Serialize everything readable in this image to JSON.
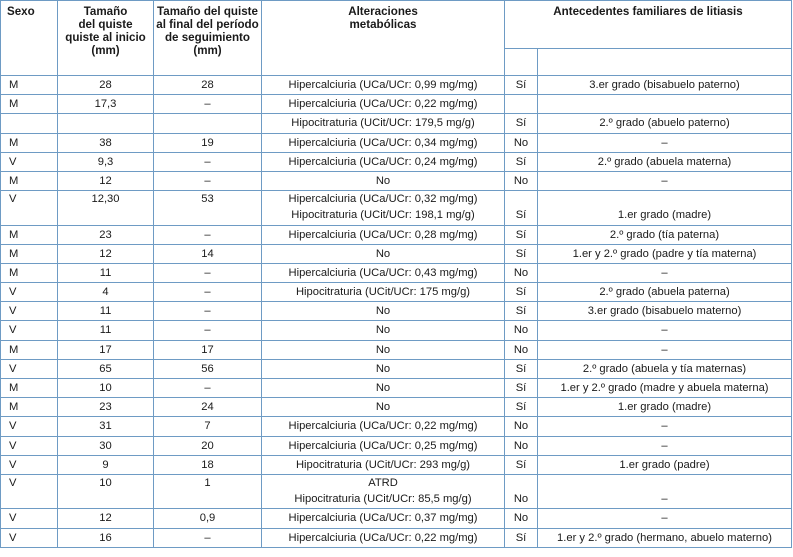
{
  "headers": {
    "sexo": "Sexo",
    "tam_inicio": [
      "Tamaño",
      "del quiste",
      "quiste al inicio",
      "(mm)"
    ],
    "tam_final": [
      "Tamaño del quiste",
      "al final del período",
      "de seguimiento",
      "(mm)"
    ],
    "alteraciones": [
      "Alteraciones",
      "metabólicas"
    ],
    "antecedentes": "Antecedentes familiares de litiasis"
  },
  "rows": [
    {
      "sexo": "M",
      "inicio": "28",
      "final": "28",
      "alt": [
        "Hipercalciuria (UCa/UCr: 0,99 mg/mg)"
      ],
      "si": "Sí",
      "ant": "3.er grado (bisabuelo paterno)"
    },
    {
      "sexo": "M",
      "inicio": "17,3",
      "final": "–",
      "alt": [
        "Hipercalciuria (UCa/UCr: 0,22 mg/mg)"
      ],
      "si": "",
      "ant": ""
    },
    {
      "sexo": "",
      "inicio": "",
      "final": "",
      "alt": [
        "Hipocitraturia (UCit/UCr: 179,5 mg/g)"
      ],
      "si": "Sí",
      "ant": "2.º grado (abuelo paterno)"
    },
    {
      "sexo": "M",
      "inicio": "38",
      "final": "19",
      "alt": [
        "Hipercalciuria (UCa/UCr: 0,34 mg/mg)"
      ],
      "si": "No",
      "ant": "–"
    },
    {
      "sexo": "V",
      "inicio": "9,3",
      "final": "–",
      "alt": [
        "Hipercalciuria (UCa/UCr: 0,24 mg/mg)"
      ],
      "si": "Sí",
      "ant": "2.º grado (abuela materna)"
    },
    {
      "sexo": "M",
      "inicio": "12",
      "final": "–",
      "alt": [
        "No"
      ],
      "si": "No",
      "ant": "–"
    },
    {
      "sexo": "V",
      "inicio": "12,30",
      "final": "53",
      "alt": [
        "Hipercalciuria (UCa/UCr: 0,32 mg/mg)",
        "Hipocitraturia (UCit/UCr: 198,1 mg/g)"
      ],
      "si": "Sí",
      "ant": "1.er grado (madre)"
    },
    {
      "sexo": "M",
      "inicio": "23",
      "final": "–",
      "alt": [
        "Hipercalciuria (UCa/UCr: 0,28 mg/mg)"
      ],
      "si": "Sí",
      "ant": "2.º grado (tía paterna)"
    },
    {
      "sexo": "M",
      "inicio": "12",
      "final": "14",
      "alt": [
        "No"
      ],
      "si": "Sí",
      "ant": "1.er y 2.º grado (padre y tía materna)"
    },
    {
      "sexo": "M",
      "inicio": "11",
      "final": "–",
      "alt": [
        "Hipercalciuria (UCa/UCr: 0,43 mg/mg)"
      ],
      "si": "No",
      "ant": "–"
    },
    {
      "sexo": "V",
      "inicio": "4",
      "final": "–",
      "alt": [
        "Hipocitraturia (UCit/UCr: 175 mg/g)"
      ],
      "si": "Sí",
      "ant": "2.º grado (abuela paterna)"
    },
    {
      "sexo": "V",
      "inicio": "11",
      "final": "–",
      "alt": [
        "No"
      ],
      "si": "Sí",
      "ant": "3.er grado (bisabuelo materno)"
    },
    {
      "sexo": "V",
      "inicio": "11",
      "final": "–",
      "alt": [
        "No"
      ],
      "si": "No",
      "ant": "–"
    },
    {
      "sexo": "M",
      "inicio": "17",
      "final": "17",
      "alt": [
        "No"
      ],
      "si": "No",
      "ant": "–"
    },
    {
      "sexo": "V",
      "inicio": "65",
      "final": "56",
      "alt": [
        "No"
      ],
      "si": "Sí",
      "ant": "2.º grado (abuela y tía maternas)"
    },
    {
      "sexo": "M",
      "inicio": "10",
      "final": "–",
      "alt": [
        "No"
      ],
      "si": "Sí",
      "ant": "1.er y 2.º grado (madre y abuela materna)"
    },
    {
      "sexo": "M",
      "inicio": "23",
      "final": "24",
      "alt": [
        "No"
      ],
      "si": "Sí",
      "ant": "1.er grado (madre)"
    },
    {
      "sexo": "V",
      "inicio": "31",
      "final": "7",
      "alt": [
        "Hipercalciuria (UCa/UCr: 0,22 mg/mg)"
      ],
      "si": "No",
      "ant": "–"
    },
    {
      "sexo": "V",
      "inicio": "30",
      "final": "20",
      "alt": [
        "Hipercalciuria (UCa/UCr: 0,25 mg/mg)"
      ],
      "si": "No",
      "ant": "–"
    },
    {
      "sexo": "V",
      "inicio": "9",
      "final": "18",
      "alt": [
        "Hipocitraturia (UCit/UCr: 293 mg/g)"
      ],
      "si": "Sí",
      "ant": "1.er grado (padre)"
    },
    {
      "sexo": "V",
      "inicio": "10",
      "final": "1",
      "alt": [
        "ATRD",
        "Hipocitraturia (UCit/UCr: 85,5 mg/g)"
      ],
      "si": "No",
      "ant": "–"
    },
    {
      "sexo": "V",
      "inicio": "12",
      "final": "0,9",
      "alt": [
        "Hipercalciuria (UCa/UCr: 0,37 mg/mg)"
      ],
      "si": "No",
      "ant": "–"
    },
    {
      "sexo": "V",
      "inicio": "16",
      "final": "–",
      "alt": [
        "Hipercalciuria (UCa/UCr: 0,22 mg/mg)"
      ],
      "si": "Sí",
      "ant": "1.er y 2.º grado (hermano, abuelo materno)"
    }
  ]
}
